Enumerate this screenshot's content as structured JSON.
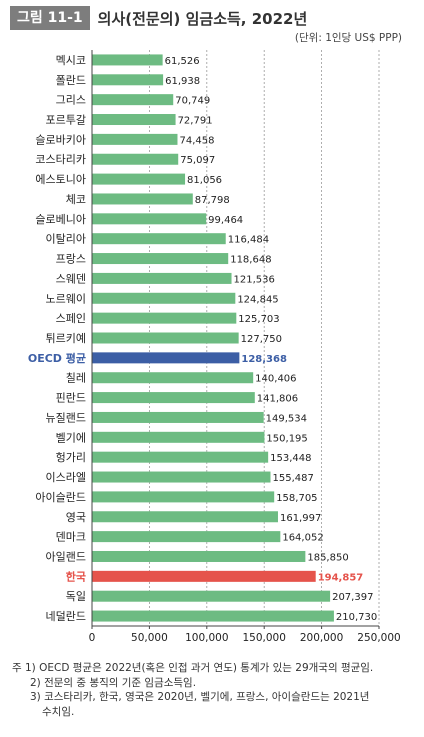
{
  "header": {
    "figure_label": "그림 11-1",
    "title": "의사(전문의) 임금소득, 2022년",
    "unit": "(단위: 1인당 US$ PPP)"
  },
  "chart_data": {
    "type": "bar",
    "orientation": "horizontal",
    "categories": [
      "멕시코",
      "폴란드",
      "그리스",
      "포르투갈",
      "슬로바키아",
      "코스타리카",
      "에스토니아",
      "체코",
      "슬로베니아",
      "이탈리아",
      "프랑스",
      "스웨덴",
      "노르웨이",
      "스페인",
      "튀르키예",
      "OECD 평균",
      "칠레",
      "핀란드",
      "뉴질랜드",
      "벨기에",
      "헝가리",
      "이스라엘",
      "아이슬란드",
      "영국",
      "덴마크",
      "아일랜드",
      "한국",
      "독일",
      "네덜란드"
    ],
    "values": [
      61526,
      61938,
      70749,
      72791,
      74458,
      75097,
      81056,
      87798,
      99464,
      116484,
      118648,
      121536,
      124845,
      125703,
      127750,
      128368,
      140406,
      141806,
      149534,
      150195,
      153448,
      155487,
      158705,
      161997,
      164052,
      185850,
      194857,
      207397,
      210730
    ],
    "value_labels": [
      "61,526",
      "61,938",
      "70,749",
      "72,791",
      "74,458",
      "75,097",
      "81,056",
      "87,798",
      "99,464",
      "116,484",
      "118,648",
      "121,536",
      "124,845",
      "125,703",
      "127,750",
      "128,368",
      "140,406",
      "141,806",
      "149,534",
      "150,195",
      "153,448",
      "155,487",
      "158,705",
      "161,997",
      "164,052",
      "185,850",
      "194,857",
      "207,397",
      "210,730"
    ],
    "highlights": {
      "OECD 평균": "#3c5ea5",
      "한국": "#e5534b"
    },
    "bar_color": "#6dbb82",
    "xlim": [
      0,
      250000
    ],
    "xticks": [
      0,
      50000,
      100000,
      150000,
      200000,
      250000
    ],
    "xtick_labels": [
      "0",
      "50,000",
      "100,000",
      "150,000",
      "200,000",
      "250,000"
    ],
    "grid": "vertical dashed",
    "xlabel": "",
    "ylabel": ""
  },
  "notes": {
    "note1": "주 1) OECD 평균은 2022년(혹은 인접 과거 연도) 통계가 있는 29개국의 평균임.",
    "note2": "2) 전문의 중 봉직의 기준 임금소득임.",
    "note3": "3) 코스타리카, 한국, 영국은 2020년, 벨기에, 프랑스, 아이슬란드는 2021년",
    "note3_cont": "수치임."
  }
}
